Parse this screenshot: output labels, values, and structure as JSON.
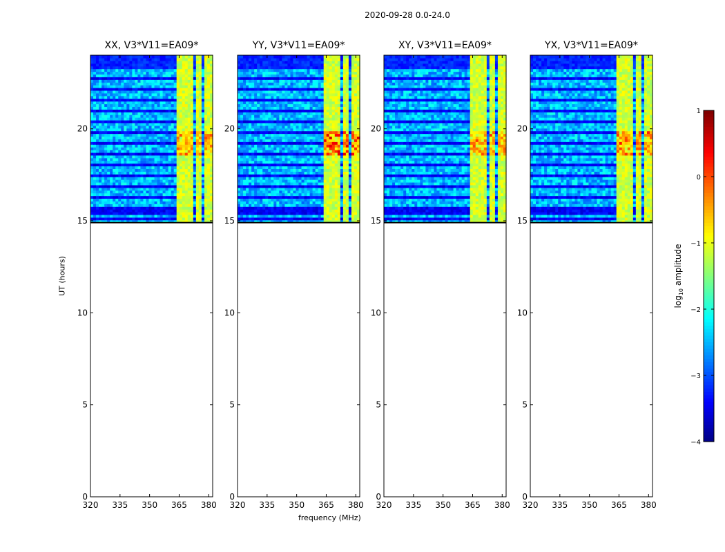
{
  "chart_data": {
    "type": "heatmap",
    "title": "2020-09-28 0.0-24.0",
    "xlabel": "frequency (MHz)",
    "ylabel": "UT (hours)",
    "xlim": [
      320,
      382
    ],
    "ylim": [
      0,
      24
    ],
    "xticks": [
      320,
      335,
      350,
      365,
      380
    ],
    "yticks": [
      0,
      5,
      10,
      15,
      20
    ],
    "data_time_range": [
      14.9,
      24
    ],
    "rfi_bands_mhz": [
      [
        363.5,
        368
      ],
      [
        368.5,
        372.5
      ],
      [
        373,
        377
      ],
      [
        377.5,
        381.5
      ]
    ],
    "panels": [
      {
        "title": "XX, V3*V11=EA09*",
        "max_log_amp": -0.3
      },
      {
        "title": "YY, V3*V11=EA09*",
        "max_log_amp": 0.3
      },
      {
        "title": "XY, V3*V11=EA09*",
        "max_log_amp": -0.3
      },
      {
        "title": "YX, V3*V11=EA09*",
        "max_log_amp": -0.1
      }
    ],
    "colorbar": {
      "label_base": "log",
      "label_sub": "10",
      "label_rest": " amplitude",
      "range": [
        -4,
        1
      ],
      "ticks": [
        "1",
        "0",
        "−1",
        "−2",
        "−3",
        "−4"
      ],
      "colormap": "jet"
    }
  }
}
